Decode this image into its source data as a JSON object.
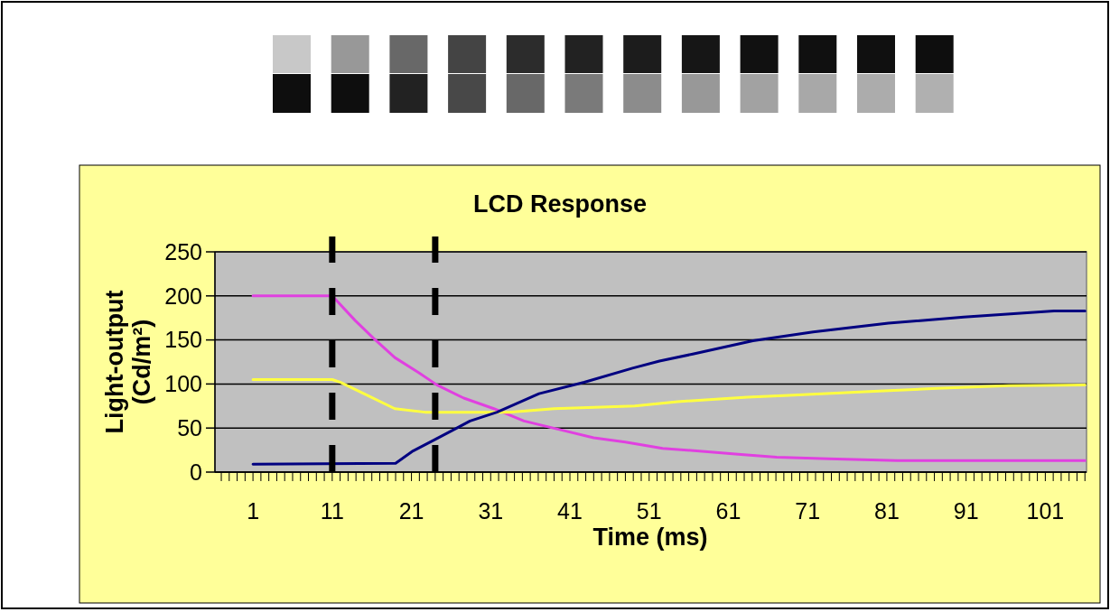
{
  "chart_data": {
    "type": "line",
    "title": "LCD Response",
    "xlabel": "Time (ms)",
    "ylabel": "Light-output (Cd/m²)",
    "xlim": [
      -3.8,
      106.2
    ],
    "xticks": [
      {
        "value": -3,
        "label": null
      },
      {
        "value": -2,
        "label": null
      },
      {
        "value": -1,
        "label": null
      },
      {
        "value": 0,
        "label": null
      },
      1,
      {
        "value": 2,
        "label": null
      },
      {
        "value": 3,
        "label": null
      },
      {
        "value": 4,
        "label": null
      },
      {
        "value": 5,
        "label": null
      },
      {
        "value": 6,
        "label": null
      },
      {
        "value": 7,
        "label": null
      },
      {
        "value": 8,
        "label": null
      },
      {
        "value": 9,
        "label": null
      },
      {
        "value": 10,
        "label": null
      },
      11,
      {
        "value": 12,
        "label": null
      },
      {
        "value": 13,
        "label": null
      },
      {
        "value": 14,
        "label": null
      },
      {
        "value": 15,
        "label": null
      },
      {
        "value": 16,
        "label": null
      },
      {
        "value": 17,
        "label": null
      },
      {
        "value": 18,
        "label": null
      },
      {
        "value": 19,
        "label": null
      },
      {
        "value": 20,
        "label": null
      },
      21,
      {
        "value": 22,
        "label": null
      },
      {
        "value": 23,
        "label": null
      },
      {
        "value": 24,
        "label": null
      },
      {
        "value": 25,
        "label": null
      },
      {
        "value": 26,
        "label": null
      },
      {
        "value": 27,
        "label": null
      },
      {
        "value": 28,
        "label": null
      },
      {
        "value": 29,
        "label": null
      },
      {
        "value": 30,
        "label": null
      },
      31,
      {
        "value": 32,
        "label": null
      },
      {
        "value": 33,
        "label": null
      },
      {
        "value": 34,
        "label": null
      },
      {
        "value": 35,
        "label": null
      },
      {
        "value": 36,
        "label": null
      },
      {
        "value": 37,
        "label": null
      },
      {
        "value": 38,
        "label": null
      },
      {
        "value": 39,
        "label": null
      },
      {
        "value": 40,
        "label": null
      },
      41,
      {
        "value": 42,
        "label": null
      },
      {
        "value": 43,
        "label": null
      },
      {
        "value": 44,
        "label": null
      },
      {
        "value": 45,
        "label": null
      },
      {
        "value": 46,
        "label": null
      },
      {
        "value": 47,
        "label": null
      },
      {
        "value": 48,
        "label": null
      },
      {
        "value": 49,
        "label": null
      },
      {
        "value": 50,
        "label": null
      },
      51,
      {
        "value": 52,
        "label": null
      },
      {
        "value": 53,
        "label": null
      },
      {
        "value": 54,
        "label": null
      },
      {
        "value": 55,
        "label": null
      },
      {
        "value": 56,
        "label": null
      },
      {
        "value": 57,
        "label": null
      },
      {
        "value": 58,
        "label": null
      },
      {
        "value": 59,
        "label": null
      },
      {
        "value": 60,
        "label": null
      },
      61,
      {
        "value": 62,
        "label": null
      },
      {
        "value": 63,
        "label": null
      },
      {
        "value": 64,
        "label": null
      },
      {
        "value": 65,
        "label": null
      },
      {
        "value": 66,
        "label": null
      },
      {
        "value": 67,
        "label": null
      },
      {
        "value": 68,
        "label": null
      },
      {
        "value": 69,
        "label": null
      },
      {
        "value": 70,
        "label": null
      },
      71,
      {
        "value": 72,
        "label": null
      },
      {
        "value": 73,
        "label": null
      },
      {
        "value": 74,
        "label": null
      },
      {
        "value": 75,
        "label": null
      },
      {
        "value": 76,
        "label": null
      },
      {
        "value": 77,
        "label": null
      },
      {
        "value": 78,
        "label": null
      },
      {
        "value": 79,
        "label": null
      },
      {
        "value": 80,
        "label": null
      },
      81,
      {
        "value": 82,
        "label": null
      },
      {
        "value": 83,
        "label": null
      },
      {
        "value": 84,
        "label": null
      },
      {
        "value": 85,
        "label": null
      },
      {
        "value": 86,
        "label": null
      },
      {
        "value": 87,
        "label": null
      },
      {
        "value": 88,
        "label": null
      },
      {
        "value": 89,
        "label": null
      },
      {
        "value": 90,
        "label": null
      },
      91,
      {
        "value": 92,
        "label": null
      },
      {
        "value": 93,
        "label": null
      },
      {
        "value": 94,
        "label": null
      },
      {
        "value": 95,
        "label": null
      },
      {
        "value": 96,
        "label": null
      },
      {
        "value": 97,
        "label": null
      },
      {
        "value": 98,
        "label": null
      },
      {
        "value": 99,
        "label": null
      },
      {
        "value": 100,
        "label": null
      },
      101,
      {
        "value": 102,
        "label": null
      },
      {
        "value": 103,
        "label": null
      },
      {
        "value": 104,
        "label": null
      },
      {
        "value": 105,
        "label": null
      },
      {
        "value": 106,
        "label": null
      }
    ],
    "ylim": [
      0,
      250
    ],
    "yticks": [
      0,
      50,
      100,
      150,
      200,
      250
    ],
    "grid": "y",
    "line_style": "solid",
    "series": [
      {
        "color": "#e040e0",
        "x": [
          1,
          11,
          13.9,
          16.2,
          18.9,
          21.9,
          24.2,
          27.6,
          31.4,
          35.2,
          39.8,
          44,
          48,
          52.7,
          58.4,
          62.6,
          67.1,
          73.6,
          82.3,
          106
        ],
        "values": [
          200,
          200,
          172,
          152,
          130,
          113,
          99,
          84,
          72,
          58,
          48,
          39,
          34,
          27,
          23,
          20,
          17,
          15,
          13,
          13
        ]
      },
      {
        "color": "#ffff40",
        "x": [
          1,
          11,
          12,
          15,
          18.9,
          22.7,
          25.7,
          33.3,
          39,
          49.2,
          54.6,
          63.4,
          68.6,
          80,
          87.3,
          96.4,
          106
        ],
        "values": [
          105,
          105,
          102,
          89,
          72,
          68,
          68,
          68,
          72,
          75,
          80,
          85,
          87,
          92,
          95,
          98,
          99
        ]
      },
      {
        "color": "#000080",
        "x": [
          1,
          19,
          21.2,
          24.2,
          28.4,
          31.8,
          37.1,
          42.8,
          48.9,
          52.3,
          56.5,
          64.1,
          71.7,
          81.2,
          90.7,
          102.1,
          106
        ],
        "values": [
          9,
          10,
          24,
          38,
          58,
          68,
          89,
          102,
          118,
          126,
          134,
          149,
          159,
          169,
          176,
          183,
          183
        ]
      }
    ],
    "ref_lines": [
      {
        "axis": "x",
        "value": 11,
        "color": "#000000",
        "line_style": "dashed"
      },
      {
        "axis": "x",
        "value": 24,
        "color": "#000000",
        "line_style": "dashed"
      }
    ]
  }
}
